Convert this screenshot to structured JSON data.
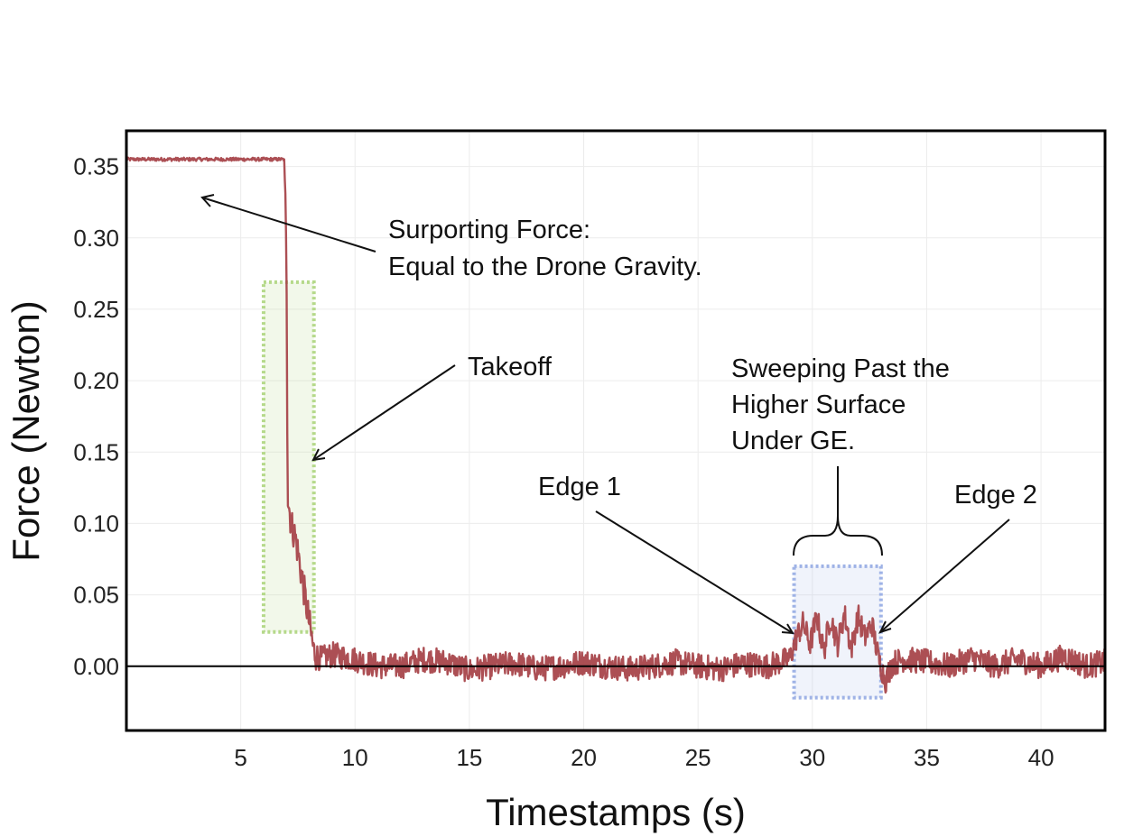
{
  "chart_data": {
    "type": "line",
    "title": "",
    "xlabel": "Timestamps (s)",
    "ylabel": "Force (Newton)",
    "xlim": [
      0,
      42.8
    ],
    "ylim": [
      -0.045,
      0.375
    ],
    "xticks": [
      {
        "value": 5,
        "label": "5"
      },
      {
        "value": 10,
        "label": "10"
      },
      {
        "value": 15,
        "label": "15"
      },
      {
        "value": 20,
        "label": "20"
      },
      {
        "value": 25,
        "label": "25"
      },
      {
        "value": 30,
        "label": "30"
      },
      {
        "value": 35,
        "label": "35"
      },
      {
        "value": 40,
        "label": "40"
      }
    ],
    "yticks": [
      {
        "value": 0.0,
        "label": "0.00"
      },
      {
        "value": 0.05,
        "label": "0.05"
      },
      {
        "value": 0.1,
        "label": "0.10"
      },
      {
        "value": 0.15,
        "label": "0.15"
      },
      {
        "value": 0.2,
        "label": "0.20"
      },
      {
        "value": 0.25,
        "label": "0.25"
      },
      {
        "value": 0.3,
        "label": "0.30"
      },
      {
        "value": 0.35,
        "label": "0.35"
      }
    ],
    "grid": true,
    "zero_line": true,
    "series": [
      {
        "color": "#a8464b",
        "x": [
          0.0,
          1.0,
          2.0,
          3.0,
          4.0,
          5.0,
          6.0,
          6.9,
          7.0,
          7.05,
          7.2,
          7.4,
          7.6,
          7.8,
          8.0,
          8.2,
          8.5,
          9.0,
          10.0,
          11.0,
          12.0,
          13.0,
          14.0,
          15.0,
          16.0,
          17.0,
          18.0,
          19.0,
          20.0,
          21.0,
          22.0,
          23.0,
          24.0,
          25.0,
          26.0,
          27.0,
          28.0,
          29.0,
          29.3,
          29.6,
          29.9,
          30.2,
          30.5,
          30.8,
          31.1,
          31.4,
          31.7,
          32.0,
          32.3,
          32.6,
          32.9,
          33.2,
          33.5,
          34.0,
          35.0,
          36.0,
          37.0,
          38.0,
          39.0,
          40.0,
          41.0,
          42.0,
          42.8
        ],
        "y": [
          0.355,
          0.355,
          0.355,
          0.355,
          0.355,
          0.355,
          0.355,
          0.355,
          0.3,
          0.12,
          0.1,
          0.09,
          0.07,
          0.05,
          0.03,
          0.01,
          0.005,
          0.008,
          0.005,
          0.0,
          0.0,
          0.005,
          0.003,
          -0.003,
          0.0,
          0.002,
          -0.002,
          0.0,
          0.003,
          0.0,
          -0.002,
          0.0,
          0.003,
          0.0,
          -0.002,
          0.002,
          0.0,
          0.005,
          0.02,
          0.03,
          0.015,
          0.035,
          0.01,
          0.035,
          0.015,
          0.037,
          0.012,
          0.035,
          0.02,
          0.03,
          0.005,
          -0.01,
          0.002,
          0.005,
          0.003,
          0.0,
          0.006,
          0.0,
          0.005,
          0.0,
          0.007,
          0.0,
          0.003
        ]
      }
    ],
    "highlights": [
      {
        "label": "Takeoff",
        "x": [
          6.0,
          8.2
        ],
        "y": [
          0.024,
          0.269
        ],
        "color": "#b5d98a"
      },
      {
        "label": "Sweeping Past the Higher Surface Under GE.",
        "x": [
          29.2,
          33.0
        ],
        "y": [
          -0.022,
          0.07
        ],
        "color": "#9fb3e6"
      }
    ],
    "annotations": [
      {
        "lines": [
          "Surporting Force:",
          "Equal to the Drone Gravity."
        ],
        "target": [
          3.2,
          0.333
        ]
      },
      {
        "lines": [
          "Takeoff"
        ],
        "target": [
          8.2,
          0.147
        ]
      },
      {
        "lines": [
          "Sweeping Past the",
          "Higher Surface",
          "Under GE."
        ],
        "target": [
          31.1,
          0.1
        ]
      },
      {
        "lines": [
          "Edge 1"
        ],
        "target": [
          29.3,
          0.023
        ]
      },
      {
        "lines": [
          "Edge 2"
        ],
        "target": [
          32.9,
          0.025
        ]
      }
    ]
  }
}
